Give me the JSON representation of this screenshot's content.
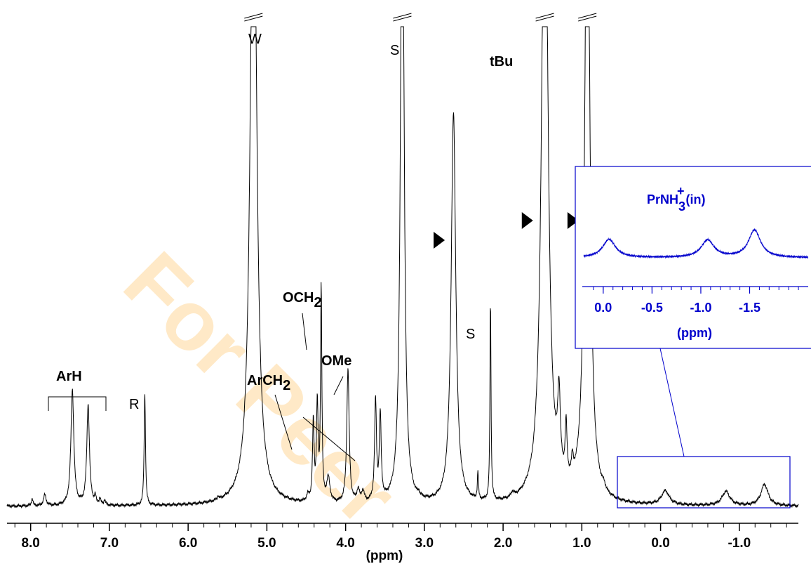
{
  "watermark": "For Peer",
  "chart_data": {
    "type": "line",
    "xlabel": "(ppm)",
    "xlim": [
      8.3,
      -1.75
    ],
    "x_reversed": true,
    "xticks": [
      {
        "value": 8.0,
        "label": "8.0"
      },
      {
        "value": 7.0,
        "label": "7.0"
      },
      {
        "value": 6.0,
        "label": "6.0"
      },
      {
        "value": 5.0,
        "label": "5.0"
      },
      {
        "value": 4.0,
        "label": "4.0"
      },
      {
        "value": 3.0,
        "label": "3.0"
      },
      {
        "value": 2.0,
        "label": "2.0"
      },
      {
        "value": 1.0,
        "label": "1.0"
      },
      {
        "value": 0.0,
        "label": "0.0"
      },
      {
        "value": -1.0,
        "label": "-1.0"
      }
    ],
    "peaks": [
      {
        "ppm": 7.98,
        "height": 0.012,
        "width": 0.012
      },
      {
        "ppm": 7.82,
        "height": 0.018,
        "width": 0.02
      },
      {
        "ppm": 7.47,
        "height": 0.19,
        "width": 0.022
      },
      {
        "ppm": 7.27,
        "height": 0.165,
        "width": 0.02
      },
      {
        "ppm": 7.18,
        "height": 0.012,
        "width": 0.012
      },
      {
        "ppm": 7.12,
        "height": 0.01,
        "width": 0.012
      },
      {
        "ppm": 7.06,
        "height": 0.008,
        "width": 0.012
      },
      {
        "ppm": 6.55,
        "height": 0.185,
        "width": 0.01
      },
      {
        "ppm": 5.62,
        "height": 0.006,
        "width": 0.01
      },
      {
        "ppm": 5.17,
        "height": 1.2,
        "width": 0.045
      },
      {
        "ppm": 4.48,
        "height": 0.01,
        "width": 0.02
      },
      {
        "ppm": 4.41,
        "height": 0.13,
        "width": 0.012
      },
      {
        "ppm": 4.36,
        "height": 0.16,
        "width": 0.012
      },
      {
        "ppm": 4.31,
        "height": 0.35,
        "width": 0.01
      },
      {
        "ppm": 4.22,
        "height": 0.04,
        "width": 0.025
      },
      {
        "ppm": 3.97,
        "height": 0.22,
        "width": 0.018
      },
      {
        "ppm": 3.84,
        "height": 0.02,
        "width": 0.02
      },
      {
        "ppm": 3.78,
        "height": 0.018,
        "width": 0.02
      },
      {
        "ppm": 3.62,
        "height": 0.165,
        "width": 0.014
      },
      {
        "ppm": 3.56,
        "height": 0.14,
        "width": 0.014
      },
      {
        "ppm": 3.28,
        "height": 1.2,
        "width": 0.025
      },
      {
        "ppm": 3.07,
        "height": 0.006,
        "width": 0.01
      },
      {
        "ppm": 2.63,
        "height": 0.64,
        "width": 0.035
      },
      {
        "ppm": 2.32,
        "height": 0.045,
        "width": 0.008
      },
      {
        "ppm": 2.16,
        "height": 0.33,
        "width": 0.008
      },
      {
        "ppm": 1.88,
        "height": 0.008,
        "width": 0.02
      },
      {
        "ppm": 1.47,
        "height": 1.2,
        "width": 0.045
      },
      {
        "ppm": 1.29,
        "height": 0.13,
        "width": 0.02
      },
      {
        "ppm": 1.2,
        "height": 0.09,
        "width": 0.014
      },
      {
        "ppm": 1.12,
        "height": 0.03,
        "width": 0.014
      },
      {
        "ppm": 0.93,
        "height": 1.2,
        "width": 0.035
      },
      {
        "ppm": 0.72,
        "height": 0.008,
        "width": 0.02
      },
      {
        "ppm": -0.06,
        "height": 0.023,
        "width": 0.06
      },
      {
        "ppm": -0.83,
        "height": 0.023,
        "width": 0.06
      },
      {
        "ppm": -1.32,
        "height": 0.035,
        "width": 0.055
      }
    ],
    "peak_labels": [
      "W",
      "S",
      "S",
      "tBu",
      "R"
    ],
    "assignments": [
      "ArH",
      "ArCH",
      "OCH",
      "OMe"
    ],
    "subscript": "2",
    "marker_ppm": [
      2.82,
      1.7,
      1.12
    ],
    "inset": {
      "title_prefix": "PrNH",
      "title_sub": "3",
      "title_sup": "+",
      "title_suffix": "(in)",
      "xlabel": "(ppm)",
      "xlim": [
        0.2,
        -2.1
      ],
      "xticks": [
        {
          "value": 0.0,
          "label": "0.0"
        },
        {
          "value": -0.5,
          "label": "-0.5"
        },
        {
          "value": -1.0,
          "label": "-1.0"
        },
        {
          "value": -1.5,
          "label": "-1.5"
        }
      ],
      "peaks": [
        {
          "ppm": -0.06,
          "height": 0.4,
          "width": 0.08
        },
        {
          "ppm": -1.07,
          "height": 0.38,
          "width": 0.08
        },
        {
          "ppm": -1.55,
          "height": 0.6,
          "width": 0.075
        }
      ],
      "color": "#0000cc"
    }
  }
}
